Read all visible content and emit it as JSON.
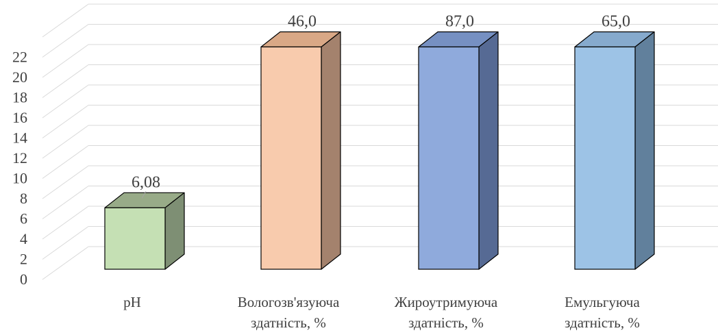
{
  "chart_data": {
    "type": "bar",
    "style": "3d-column",
    "categories": [
      [
        "pH"
      ],
      [
        "Вологозв'язуюча",
        "здатність, %"
      ],
      [
        "Жироутримуюча",
        "здатність, %"
      ],
      [
        "Емульгуюча",
        "здатність, %"
      ]
    ],
    "values": [
      6.08,
      46.0,
      87.0,
      65.0
    ],
    "data_labels": [
      "6,08",
      "46,0",
      "87,0",
      "65,0"
    ],
    "ylim": [
      0,
      22
    ],
    "y_ticks": [
      "0",
      "2",
      "4",
      "6",
      "8",
      "10",
      "12",
      "14",
      "16",
      "18",
      "20",
      "22"
    ],
    "grid": true,
    "legend": "none",
    "bar_colors": [
      {
        "front": "#c5e0b4",
        "side": "#7e8f74",
        "top": "#98ab88"
      },
      {
        "front": "#f8cbad",
        "side": "#a4826d",
        "top": "#d9a886"
      },
      {
        "front": "#8faadc",
        "side": "#566a94",
        "top": "#7690c2"
      },
      {
        "front": "#9dc3e6",
        "side": "#61809c",
        "top": "#86aacd"
      }
    ],
    "gridline_color": "#d9d9d9",
    "text_color": "#404040"
  }
}
